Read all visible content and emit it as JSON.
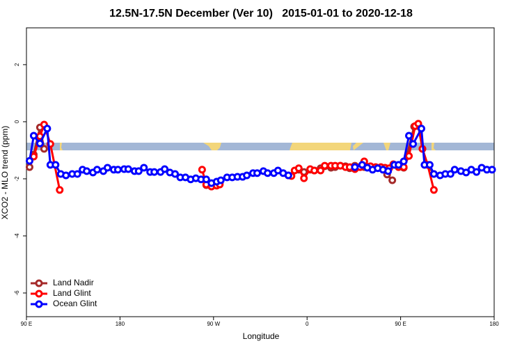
{
  "chart_data": {
    "type": "line",
    "title": "12.5N-17.5N December (Ver 10)   2015-01-01 to 2020-12-18",
    "x_label": "Longitude",
    "y_label": "XCO2 - MLO trend (ppm)",
    "xlim": [
      90,
      540
    ],
    "xticks": [
      {
        "value": 90,
        "label": "90 E"
      },
      {
        "value": 180,
        "label": "180"
      },
      {
        "value": 270,
        "label": "90 W"
      },
      {
        "value": 360,
        "label": "0"
      },
      {
        "value": 450,
        "label": "90 E"
      },
      {
        "value": 540,
        "label": "180"
      }
    ],
    "ylim": [
      -6.83,
      3.29
    ],
    "yticks": [
      2,
      0,
      -2,
      -4,
      -6
    ],
    "legend": "bottom-left",
    "series": [
      {
        "name": "Land Nadir",
        "color": "#a52a2a",
        "x": [
          93,
          97,
          103,
          107,
          null,
          263,
          268,
          273,
          276,
          null,
          352,
          357,
          363,
          367,
          373,
          377,
          383,
          387,
          392,
          397,
          401,
          406,
          411,
          415,
          421,
          426,
          431,
          437,
          442,
          null,
          453,
          463,
          467,
          471,
          476,
          482
        ],
        "values": [
          -1.59,
          -1.15,
          -0.2,
          -0.95,
          null,
          -2.22,
          -2.27,
          -2.2,
          -2.15,
          null,
          -1.68,
          -1.76,
          -1.68,
          -1.71,
          -1.63,
          -1.56,
          -1.61,
          -1.59,
          -1.54,
          -1.56,
          -1.63,
          -1.54,
          -1.59,
          -1.59,
          -1.59,
          -1.59,
          -1.59,
          -1.85,
          -2.05,
          null,
          -1.61,
          -0.17,
          -0.15,
          -0.95,
          -1.51,
          -1.83
        ]
      },
      {
        "name": "Land Glint",
        "color": "#ff0000",
        "x": [
          97,
          103,
          107,
          113,
          122,
          null,
          259,
          263,
          268,
          273,
          276,
          null,
          342,
          345,
          348,
          352,
          357,
          363,
          367,
          373,
          377,
          383,
          387,
          392,
          397,
          401,
          406,
          411,
          415,
          421,
          426,
          431,
          435,
          439,
          443,
          448,
          453,
          458,
          464,
          467,
          471,
          476,
          482
        ],
        "values": [
          -1.22,
          -0.51,
          -0.1,
          -0.78,
          -2.39,
          null,
          -1.68,
          -2.2,
          -2.27,
          -2.24,
          -2.2,
          null,
          -1.88,
          -1.9,
          -1.71,
          -1.63,
          -1.98,
          -1.66,
          -1.71,
          -1.71,
          -1.54,
          -1.54,
          -1.54,
          -1.54,
          -1.59,
          -1.59,
          -1.66,
          -1.59,
          -1.39,
          -1.56,
          -1.59,
          -1.59,
          -1.61,
          -1.63,
          -1.49,
          -1.59,
          -1.59,
          -1.2,
          -0.15,
          -0.07,
          -0.95,
          -1.51,
          -2.39
        ]
      },
      {
        "name": "Ocean Glint",
        "color": "#0000ff",
        "x": [
          93,
          97,
          103,
          110,
          113,
          118,
          123,
          128,
          134,
          139,
          144,
          148,
          154,
          158,
          164,
          168,
          174,
          178,
          184,
          188,
          194,
          198,
          203,
          209,
          213,
          219,
          223,
          228,
          233,
          238,
          243,
          248,
          253,
          258,
          263,
          268,
          273,
          277,
          283,
          288,
          293,
          298,
          302,
          308,
          312,
          318,
          322,
          328,
          332,
          337,
          342,
          null,
          406,
          413,
          418,
          423,
          428,
          433,
          438,
          444,
          448,
          453,
          458,
          462,
          470,
          473,
          478,
          482,
          488,
          493,
          498,
          502,
          508,
          513,
          518,
          523,
          528,
          533,
          538
        ],
        "values": [
          -1.37,
          -0.49,
          -0.76,
          -0.24,
          -1.51,
          -1.51,
          -1.83,
          -1.88,
          -1.83,
          -1.83,
          -1.68,
          -1.73,
          -1.78,
          -1.68,
          -1.73,
          -1.61,
          -1.68,
          -1.68,
          -1.66,
          -1.66,
          -1.73,
          -1.73,
          -1.61,
          -1.76,
          -1.76,
          -1.76,
          -1.66,
          -1.78,
          -1.83,
          -1.95,
          -1.95,
          -2.02,
          -1.98,
          -2.02,
          -2.02,
          -2.15,
          -2.1,
          -2.05,
          -1.95,
          -1.95,
          -1.93,
          -1.93,
          -1.88,
          -1.8,
          -1.8,
          -1.73,
          -1.8,
          -1.8,
          -1.71,
          -1.8,
          -1.88,
          null,
          -1.59,
          -1.51,
          -1.61,
          -1.68,
          -1.63,
          -1.68,
          -1.73,
          -1.51,
          -1.51,
          -1.39,
          -0.49,
          -0.78,
          -0.24,
          -1.51,
          -1.51,
          -1.83,
          -1.88,
          -1.83,
          -1.83,
          -1.68,
          -1.73,
          -1.78,
          -1.68,
          -1.76,
          -1.61,
          -1.68,
          -1.68
        ]
      }
    ]
  }
}
